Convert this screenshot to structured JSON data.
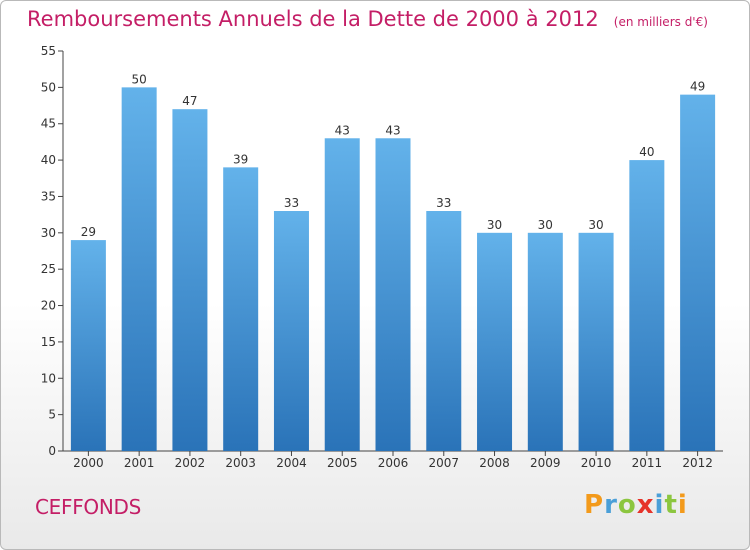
{
  "chart_data": {
    "type": "bar",
    "title": "Remboursements Annuels de la Dette de 2000 à 2012",
    "subtitle": "(en milliers d'€)",
    "categories": [
      "2000",
      "2001",
      "2002",
      "2003",
      "2004",
      "2005",
      "2006",
      "2007",
      "2008",
      "2009",
      "2010",
      "2011",
      "2012"
    ],
    "values": [
      29,
      50,
      47,
      39,
      33,
      43,
      43,
      33,
      30,
      30,
      30,
      40,
      49
    ],
    "ylim": [
      0,
      55
    ],
    "yticks": [
      0,
      5,
      10,
      15,
      20,
      25,
      30,
      35,
      40,
      45,
      50,
      55
    ],
    "grid": false,
    "bar_color": "#3d8fd4",
    "xlabel": "",
    "ylabel": ""
  },
  "commune": "CEFFONDS",
  "logo": "Proxiti",
  "colors": {
    "accent": "#c41e66",
    "bar_light": "#63b2ea",
    "bar_dark": "#2a73b8"
  }
}
